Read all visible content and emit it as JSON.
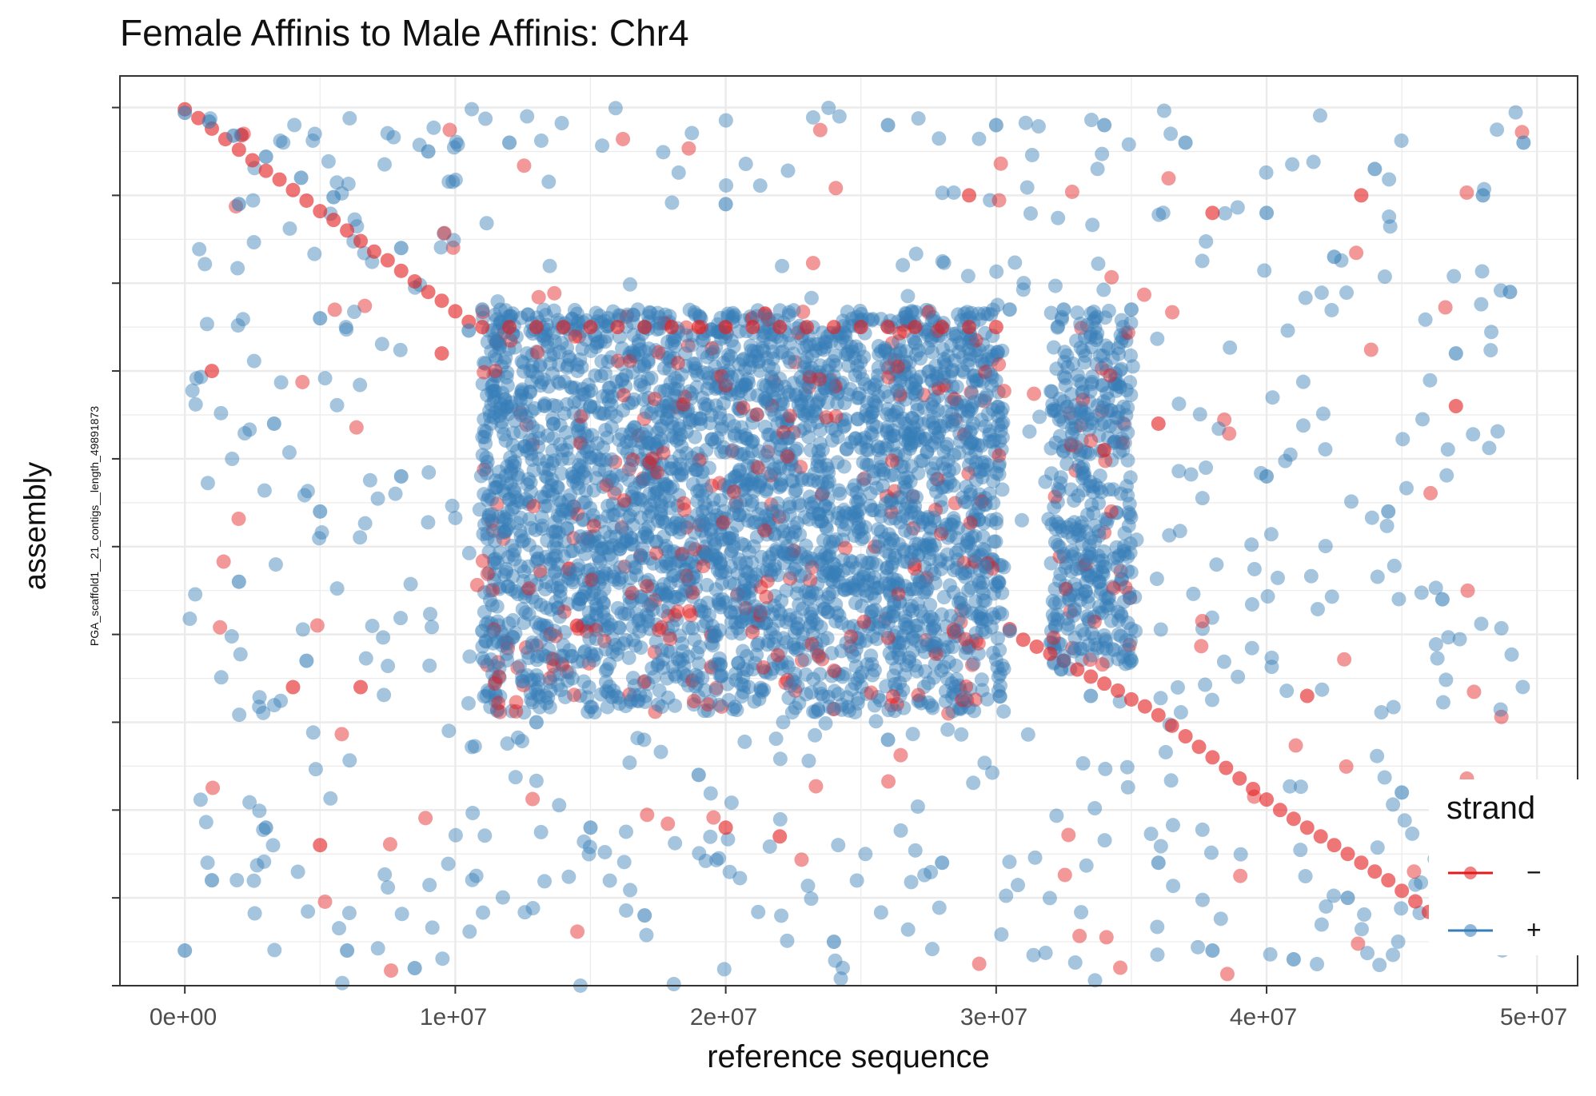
{
  "chart_data": {
    "type": "scatter",
    "title": "Female Affinis to Male Affinis: Chr4",
    "xlabel": "reference sequence",
    "ylabel": "assembly",
    "y_sequence_label": "PGA_scaffold1__21_contigs__length_49891873",
    "x_ticks": [
      "0e+00",
      "1e+07",
      "2e+07",
      "3e+07",
      "4e+07",
      "5e+07"
    ],
    "x_tick_values": [
      0,
      10000000,
      20000000,
      30000000,
      40000000,
      50000000
    ],
    "xlim": [
      -2400000,
      51500000
    ],
    "ylim": [
      0,
      51800000
    ],
    "grid": true,
    "legend": {
      "title": "strand",
      "placement": "bottom-right",
      "entries": [
        {
          "label": "−",
          "color": "#e41a1c"
        },
        {
          "label": "+",
          "color": "#377eb8"
        }
      ]
    },
    "series": [
      {
        "name": "−",
        "color": "#e41a1c",
        "values": [
          [
            0,
            49900000
          ],
          [
            500000,
            49400000
          ],
          [
            1000000,
            48800000
          ],
          [
            1500000,
            48200000
          ],
          [
            2000000,
            47600000
          ],
          [
            2500000,
            47000000
          ],
          [
            3000000,
            46400000
          ],
          [
            3500000,
            45900000
          ],
          [
            4000000,
            45300000
          ],
          [
            4500000,
            44700000
          ],
          [
            5000000,
            44100000
          ],
          [
            5500000,
            43600000
          ],
          [
            6000000,
            43000000
          ],
          [
            6500000,
            42400000
          ],
          [
            7000000,
            41800000
          ],
          [
            7500000,
            41300000
          ],
          [
            8000000,
            40700000
          ],
          [
            8500000,
            40100000
          ],
          [
            9000000,
            39500000
          ],
          [
            9500000,
            39000000
          ],
          [
            10000000,
            38400000
          ],
          [
            10500000,
            37800000
          ],
          [
            11000000,
            37500000
          ],
          [
            12000000,
            37500000
          ],
          [
            13000000,
            37500000
          ],
          [
            14000000,
            37500000
          ],
          [
            15000000,
            37500000
          ],
          [
            16000000,
            37500000
          ],
          [
            17000000,
            37500000
          ],
          [
            18000000,
            37500000
          ],
          [
            19000000,
            37500000
          ],
          [
            20000000,
            37500000
          ],
          [
            21000000,
            37500000
          ],
          [
            22000000,
            37500000
          ],
          [
            23000000,
            37500000
          ],
          [
            24000000,
            37500000
          ],
          [
            25000000,
            37500000
          ],
          [
            26000000,
            37500000
          ],
          [
            27000000,
            37500000
          ],
          [
            28000000,
            37500000
          ],
          [
            29000000,
            37500000
          ],
          [
            30000000,
            37500000
          ],
          [
            30500000,
            20300000
          ],
          [
            31000000,
            19700000
          ],
          [
            31500000,
            19300000
          ],
          [
            32000000,
            18900000
          ],
          [
            32500000,
            18500000
          ],
          [
            33000000,
            18000000
          ],
          [
            33500000,
            17600000
          ],
          [
            34000000,
            17200000
          ],
          [
            34500000,
            16800000
          ],
          [
            35000000,
            16300000
          ],
          [
            35500000,
            15900000
          ],
          [
            36000000,
            15400000
          ],
          [
            36500000,
            14800000
          ],
          [
            37000000,
            14200000
          ],
          [
            37500000,
            13600000
          ],
          [
            38000000,
            13000000
          ],
          [
            38500000,
            12400000
          ],
          [
            39000000,
            11800000
          ],
          [
            39500000,
            11200000
          ],
          [
            40000000,
            10600000
          ],
          [
            40500000,
            10000000
          ],
          [
            41000000,
            9500000
          ],
          [
            41500000,
            9000000
          ],
          [
            42000000,
            8500000
          ],
          [
            42500000,
            8000000
          ],
          [
            43000000,
            7500000
          ],
          [
            43500000,
            7000000
          ],
          [
            44000000,
            6500000
          ],
          [
            44500000,
            6000000
          ],
          [
            45000000,
            5400000
          ],
          [
            45500000,
            4800000
          ],
          [
            46000000,
            4200000
          ],
          [
            46500000,
            3700000
          ],
          [
            1000000,
            35000000
          ],
          [
            4000000,
            17000000
          ],
          [
            5000000,
            8000000
          ],
          [
            6500000,
            17000000
          ],
          [
            9500000,
            36000000
          ],
          [
            14500000,
            20500000
          ],
          [
            20000000,
            9000000
          ],
          [
            22000000,
            8500000
          ],
          [
            29000000,
            45000000
          ],
          [
            34000000,
            30500000
          ],
          [
            36000000,
            32000000
          ],
          [
            38000000,
            44000000
          ],
          [
            41500000,
            16500000
          ],
          [
            43500000,
            45000000
          ],
          [
            47000000,
            33000000
          ]
        ]
      },
      {
        "name": "+",
        "color": "#377eb8",
        "values": [
          [
            0,
            49700000
          ],
          [
            900000,
            49200000
          ],
          [
            1800000,
            48400000
          ],
          [
            3000000,
            47200000
          ],
          [
            4300000,
            46000000
          ],
          [
            5500000,
            44900000
          ],
          [
            8000000,
            42000000
          ],
          [
            10500000,
            37300000
          ],
          [
            11000000,
            38500000
          ],
          [
            11000000,
            20200000
          ],
          [
            30500000,
            38500000
          ],
          [
            30500000,
            20200000
          ],
          [
            32500000,
            38500000
          ],
          [
            35000000,
            38500000
          ],
          [
            32500000,
            18500000
          ],
          [
            35000000,
            18500000
          ],
          [
            33500000,
            16500000
          ],
          [
            9000000,
            47500000
          ],
          [
            2000000,
            44500000
          ],
          [
            5000000,
            38000000
          ],
          [
            3300000,
            32000000
          ],
          [
            5000000,
            27000000
          ],
          [
            8000000,
            29000000
          ],
          [
            2000000,
            23000000
          ],
          [
            4500000,
            18500000
          ],
          [
            0,
            2000000
          ],
          [
            8500000,
            1000000
          ],
          [
            1000000,
            6000000
          ],
          [
            3000000,
            9000000
          ],
          [
            6000000,
            2000000
          ],
          [
            13000000,
            15000000
          ],
          [
            15000000,
            9000000
          ],
          [
            17000000,
            4000000
          ],
          [
            19000000,
            12000000
          ],
          [
            24000000,
            2500000
          ],
          [
            26000000,
            14000000
          ],
          [
            28000000,
            7000000
          ],
          [
            37000000,
            48000000
          ],
          [
            40000000,
            29000000
          ],
          [
            42500000,
            41500000
          ],
          [
            44500000,
            27000000
          ],
          [
            47000000,
            36000000
          ],
          [
            49000000,
            39500000
          ],
          [
            46500000,
            22000000
          ],
          [
            48500000,
            11000000
          ],
          [
            49500000,
            48000000
          ],
          [
            43000000,
            5000000
          ],
          [
            41000000,
            1500000
          ],
          [
            38000000,
            2000000
          ],
          [
            36000000,
            7000000
          ],
          [
            45000000,
            11000000
          ],
          [
            50000000,
            3000000
          ],
          [
            12000000,
            48000000
          ],
          [
            20000000,
            44500000
          ],
          [
            26000000,
            49000000
          ],
          [
            30000000,
            49000000
          ],
          [
            34000000,
            49000000
          ],
          [
            40000000,
            44000000
          ],
          [
            44000000,
            46500000
          ],
          [
            48000000,
            45000000
          ],
          [
            18000000,
            26000000
          ],
          [
            21000000,
            31000000
          ],
          [
            24000000,
            24000000
          ],
          [
            27000000,
            34000000
          ],
          [
            15000000,
            33000000
          ]
        ]
      }
    ]
  }
}
